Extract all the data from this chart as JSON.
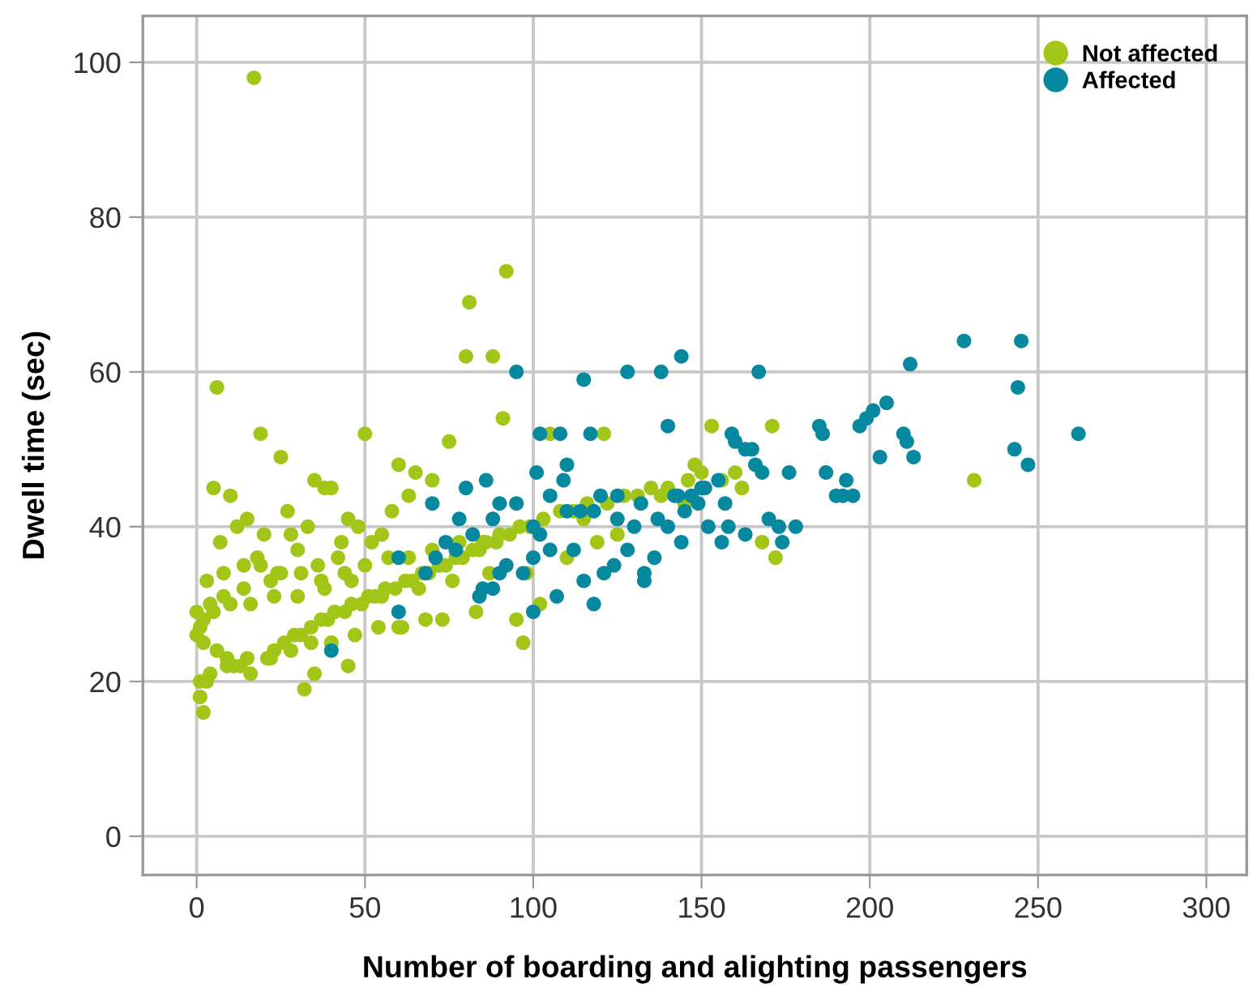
{
  "chart_data": {
    "type": "scatter",
    "xlabel": "Number of boarding and alighting passengers",
    "ylabel": "Dwell time (sec)",
    "xlim": [
      -16,
      312
    ],
    "ylim": [
      -5,
      106
    ],
    "xticks": [
      0,
      50,
      100,
      150,
      200,
      250,
      300
    ],
    "yticks": [
      0,
      20,
      40,
      60,
      80,
      100
    ],
    "grid": true,
    "legend": "top right",
    "marker": "circle",
    "series": [
      {
        "name": "Not affected",
        "color": "#a2c617",
        "x": [
          17,
          92,
          81,
          6,
          80,
          88,
          19,
          50,
          25,
          75,
          91,
          105,
          121,
          153,
          171,
          231,
          172,
          168,
          119,
          97,
          2,
          1,
          3,
          5,
          10,
          15,
          7,
          12,
          20,
          18,
          30,
          27,
          35,
          38,
          40,
          33,
          28,
          45,
          43,
          55,
          60,
          65,
          70,
          63,
          58,
          48,
          52,
          42,
          36,
          24,
          22,
          14,
          8,
          4,
          0,
          1,
          2,
          6,
          9,
          11,
          13,
          16,
          21,
          23,
          26,
          29,
          31,
          34,
          37,
          39,
          41,
          44,
          46,
          49,
          51,
          53,
          56,
          59,
          62,
          64,
          67,
          69,
          72,
          74,
          77,
          79,
          82,
          84,
          86,
          89,
          93,
          96,
          99,
          103,
          108,
          112,
          116,
          122,
          127,
          131,
          135,
          140,
          146,
          150,
          156,
          160,
          3,
          8,
          14,
          19,
          25,
          31,
          37,
          44,
          50,
          57,
          63,
          70,
          78,
          85,
          90,
          1,
          4,
          9,
          15,
          22,
          28,
          34,
          40,
          47,
          54,
          61,
          68,
          0,
          2,
          5,
          10,
          16,
          23,
          30,
          38,
          46,
          55,
          66,
          76,
          87,
          98,
          110,
          95,
          102,
          83,
          73,
          60,
          35,
          45,
          40,
          32,
          115,
          125,
          138,
          145,
          162,
          148
        ],
        "values": [
          98,
          73,
          69,
          58,
          62,
          62,
          52,
          52,
          49,
          51,
          54,
          52,
          52,
          53,
          53,
          46,
          36,
          38,
          38,
          25,
          16,
          18,
          20,
          45,
          44,
          41,
          38,
          40,
          39,
          36,
          37,
          42,
          46,
          45,
          45,
          40,
          39,
          41,
          38,
          39,
          48,
          47,
          46,
          44,
          42,
          40,
          38,
          36,
          35,
          34,
          33,
          32,
          31,
          30,
          29,
          27,
          25,
          24,
          23,
          22,
          22,
          21,
          23,
          24,
          25,
          26,
          26,
          27,
          28,
          28,
          29,
          29,
          30,
          30,
          31,
          31,
          32,
          32,
          33,
          33,
          34,
          34,
          35,
          35,
          36,
          36,
          37,
          37,
          38,
          38,
          39,
          40,
          40,
          41,
          42,
          42,
          43,
          43,
          44,
          44,
          45,
          45,
          46,
          47,
          46,
          47,
          33,
          34,
          35,
          35,
          34,
          34,
          33,
          34,
          35,
          36,
          36,
          37,
          38,
          38,
          39,
          20,
          21,
          22,
          23,
          23,
          24,
          25,
          25,
          26,
          27,
          27,
          28,
          26,
          28,
          29,
          30,
          30,
          31,
          31,
          32,
          33,
          31,
          32,
          33,
          34,
          34,
          36,
          28,
          30,
          29,
          28,
          27,
          21,
          22,
          25,
          19,
          41,
          39,
          44,
          43,
          45,
          48
        ]
      },
      {
        "name": "Affected",
        "color": "#06889f",
        "x": [
          262,
          245,
          228,
          244,
          243,
          247,
          212,
          205,
          201,
          199,
          197,
          210,
          211,
          213,
          203,
          190,
          192,
          195,
          187,
          185,
          186,
          193,
          176,
          168,
          165,
          163,
          166,
          159,
          160,
          155,
          150,
          151,
          147,
          145,
          143,
          142,
          157,
          170,
          173,
          178,
          174,
          163,
          158,
          156,
          152,
          149,
          144,
          136,
          133,
          133,
          128,
          124,
          121,
          114,
          115,
          128,
          138,
          144,
          167,
          95,
          102,
          108,
          117,
          140,
          110,
          109,
          105,
          95,
          90,
          80,
          78,
          82,
          88,
          100,
          102,
          110,
          118,
          125,
          132,
          120,
          100,
          97,
          92,
          90,
          88,
          85,
          84,
          105,
          112,
          115,
          118,
          107,
          100,
          60,
          40,
          68,
          71,
          74,
          77,
          60,
          70,
          86,
          101,
          125,
          130,
          137,
          140
        ],
        "values": [
          52,
          64,
          64,
          58,
          50,
          48,
          61,
          56,
          55,
          54,
          53,
          52,
          51,
          49,
          49,
          44,
          44,
          44,
          47,
          53,
          52,
          46,
          47,
          47,
          50,
          50,
          48,
          52,
          51,
          46,
          45,
          45,
          44,
          42,
          44,
          44,
          43,
          41,
          40,
          40,
          38,
          39,
          40,
          38,
          40,
          43,
          38,
          36,
          34,
          33,
          37,
          35,
          34,
          42,
          59,
          60,
          60,
          62,
          60,
          60,
          52,
          52,
          52,
          53,
          48,
          46,
          44,
          43,
          43,
          45,
          41,
          39,
          41,
          40,
          39,
          42,
          42,
          44,
          43,
          44,
          36,
          34,
          35,
          34,
          32,
          32,
          31,
          37,
          37,
          33,
          30,
          31,
          29,
          29,
          24,
          34,
          36,
          38,
          37,
          36,
          43,
          46,
          47,
          41,
          40,
          41,
          40
        ]
      }
    ]
  }
}
